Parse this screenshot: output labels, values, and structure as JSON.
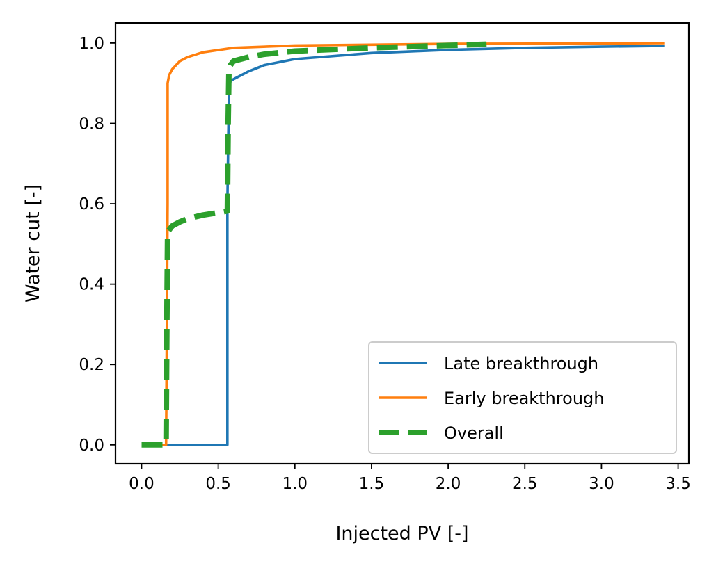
{
  "chart_data": {
    "type": "line",
    "xlabel": "Injected PV [-]",
    "ylabel": "Water cut [-]",
    "xlim": [
      -0.17,
      3.57
    ],
    "ylim": [
      -0.047,
      1.05
    ],
    "xticks": [
      "0.0",
      "0.5",
      "1.0",
      "1.5",
      "2.0",
      "2.5",
      "3.0",
      "3.5"
    ],
    "yticks": [
      "0.0",
      "0.2",
      "0.4",
      "0.6",
      "0.8",
      "1.0"
    ],
    "grid": false,
    "legend_position": "lower-right",
    "series": [
      {
        "name": "Late breakthrough",
        "color": "#1f77b4",
        "style": "solid",
        "x": [
          0.0,
          0.56,
          0.56,
          0.57,
          0.58,
          0.6,
          0.65,
          0.7,
          0.8,
          1.0,
          1.5,
          2.0,
          2.5,
          3.0,
          3.41
        ],
        "y": [
          0.0,
          0.0,
          0.6,
          0.88,
          0.905,
          0.91,
          0.92,
          0.93,
          0.945,
          0.96,
          0.975,
          0.983,
          0.988,
          0.991,
          0.993
        ]
      },
      {
        "name": "Early breakthrough",
        "color": "#ff7f0e",
        "style": "solid",
        "x": [
          0.0,
          0.16,
          0.17,
          0.17,
          0.18,
          0.2,
          0.25,
          0.3,
          0.4,
          0.6,
          1.0,
          2.0,
          3.0,
          3.41
        ],
        "y": [
          0.0,
          0.0,
          0.6,
          0.9,
          0.92,
          0.935,
          0.955,
          0.965,
          0.977,
          0.988,
          0.994,
          0.998,
          0.999,
          1.0
        ]
      },
      {
        "name": "Overall",
        "color": "#2ca02c",
        "style": "dashed",
        "x": [
          0.0,
          0.16,
          0.165,
          0.17,
          0.2,
          0.25,
          0.3,
          0.4,
          0.5,
          0.56,
          0.565,
          0.57,
          0.58,
          0.6,
          0.7,
          0.8,
          1.0,
          1.5,
          2.0,
          2.25
        ],
        "y": [
          0.0,
          0.0,
          0.3,
          0.53,
          0.545,
          0.555,
          0.563,
          0.572,
          0.578,
          0.582,
          0.8,
          0.93,
          0.945,
          0.955,
          0.965,
          0.972,
          0.98,
          0.988,
          0.994,
          0.997
        ]
      }
    ]
  }
}
